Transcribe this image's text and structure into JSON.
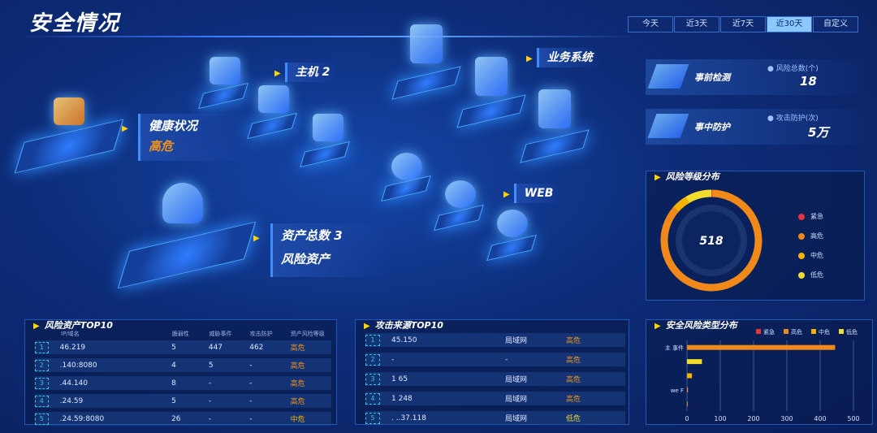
{
  "header": {
    "title": "安全情况"
  },
  "tabs": [
    {
      "label": "今天",
      "active": false
    },
    {
      "label": "近3天",
      "active": false
    },
    {
      "label": "近7天",
      "active": false
    },
    {
      "label": "近30天",
      "active": true
    },
    {
      "label": "自定义",
      "active": false
    }
  ],
  "scene": {
    "host_label": "主机 2",
    "business_label": "业务系统",
    "health_label": "健康状况",
    "health_value": "高危",
    "web_label": "WEB",
    "asset_total_label": "资产总数 3",
    "risk_asset_label": "风险资产"
  },
  "stats": [
    {
      "name": "事前检测",
      "key": "风险总数(个)",
      "value": "18"
    },
    {
      "name": "事中防护",
      "key": "攻击防护(次)",
      "value": "5万"
    }
  ],
  "risk_level": {
    "title": "风险等级分布",
    "total": "518",
    "legend": [
      {
        "label": "紧急",
        "color": "#e8323c"
      },
      {
        "label": "高危",
        "color": "#f0891a"
      },
      {
        "label": "中危",
        "color": "#f5b300"
      },
      {
        "label": "低危",
        "color": "#f2dc2e"
      }
    ]
  },
  "risk_assets": {
    "title": "风险资产TOP10",
    "columns": [
      "IP/域名",
      "脆弱性",
      "威胁事件",
      "攻击防护",
      "资产风险等级"
    ],
    "rows": [
      [
        "1",
        "46.219",
        "5",
        "447",
        "462",
        "高危"
      ],
      [
        "2",
        ".140:8080",
        "4",
        "5",
        "-",
        "高危"
      ],
      [
        "3",
        ".44.140",
        "8",
        "-",
        "-",
        "高危"
      ],
      [
        "4",
        ".24.59",
        "5",
        "-",
        "-",
        "高危"
      ],
      [
        "5",
        ".24.59:8080",
        "26",
        "-",
        "-",
        "中危"
      ]
    ]
  },
  "attack_sources": {
    "title": "攻击来源TOP10",
    "rows": [
      [
        "1",
        "45.150",
        "局域网",
        "高危"
      ],
      [
        "2",
        "-",
        "-",
        "高危"
      ],
      [
        "3",
        "1   65",
        "局域网",
        "高危"
      ],
      [
        "4",
        "1   248",
        "局域网",
        "高危"
      ],
      [
        "5",
        ". ..37.118",
        "局域网",
        "低危"
      ]
    ]
  },
  "chart_data": [
    {
      "type": "pie",
      "title": "风险等级分布",
      "center_label": "518",
      "categories": [
        "紧急",
        "高危",
        "中危",
        "低危"
      ],
      "values": [
        1,
        447,
        26,
        44
      ],
      "colors": [
        "#e8323c",
        "#f0891a",
        "#f5b300",
        "#f2dc2e"
      ]
    },
    {
      "type": "bar",
      "orientation": "horizontal",
      "title": "安全风险类型分布",
      "legend": [
        "紧急",
        "高危",
        "中危",
        "低危"
      ],
      "categories": [
        "主 事件",
        "",
        "",
        "we F",
        ""
      ],
      "values": [
        445,
        45,
        15,
        3,
        2
      ],
      "bar_series": [
        "高危",
        "低危",
        "中危",
        "高危",
        "中危"
      ],
      "xlim": [
        0,
        500
      ],
      "xticks": [
        "0",
        "100",
        "200",
        "300",
        "400",
        "500"
      ],
      "grid": true,
      "legend_position": "top-right"
    }
  ]
}
